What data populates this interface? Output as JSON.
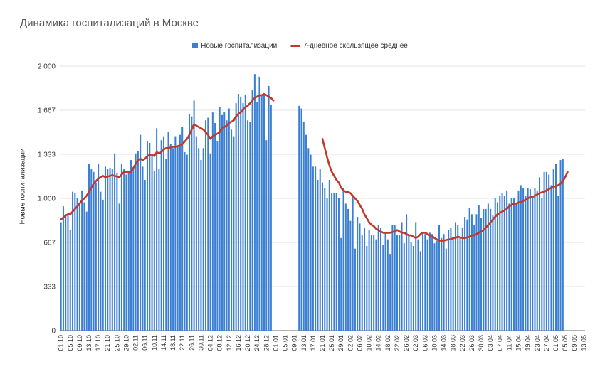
{
  "chart_data": {
    "type": "bar",
    "title": "Динамика госпитализаций в Москве",
    "ylabel": "Новые госпитализации",
    "xlabel": "",
    "ylim": [
      0,
      2000
    ],
    "yticks": [
      "0",
      "333",
      "667",
      "1 000",
      "1 333",
      "1 667",
      "2 000"
    ],
    "ytick_values": [
      0,
      333,
      667,
      1000,
      1333,
      1667,
      2000
    ],
    "grid": true,
    "legend_position": "top",
    "colors": {
      "bars": "#3b7fd4",
      "line": "#c0392b",
      "grid": "#e6e6e6"
    },
    "series": [
      {
        "name": "Новые госпитализации",
        "kind": "bar"
      },
      {
        "name": "7-дневное скользящее среднее",
        "kind": "line"
      }
    ],
    "start_date": "2020-10-01",
    "xtick_labels": [
      "01.10",
      "05.10",
      "09.10",
      "13.10",
      "17.10",
      "21.10",
      "25.10",
      "29.10",
      "02.11",
      "06.11",
      "10.11",
      "14.11",
      "18.11",
      "22.11",
      "26.11",
      "30.11",
      "04.12",
      "08.12",
      "12.12",
      "16.12",
      "20.12",
      "24.12",
      "28.12",
      "01.01",
      "05.01",
      "09.01",
      "13.01",
      "17.01",
      "21.01",
      "25.01",
      "29.01",
      "02.02",
      "06.02",
      "10.02",
      "14.02",
      "18.02",
      "22.02",
      "26.02",
      "02.03",
      "06.03",
      "10.03",
      "14.03",
      "18.03",
      "22.03",
      "26.03",
      "30.03",
      "03.04",
      "07.04",
      "11.04",
      "15.04",
      "19.04",
      "23.04",
      "27.04",
      "01.05",
      "05.05",
      "09.05",
      "13.05"
    ],
    "segments": [
      {
        "start_index": 0,
        "values": [
          820,
          940,
          880,
          870,
          760,
          1050,
          1040,
          1000,
          960,
          1060,
          970,
          900,
          1260,
          1220,
          1200,
          1120,
          1260,
          1050,
          990,
          1240,
          1220,
          1230,
          1220,
          1340,
          1190,
          960,
          1260,
          1220,
          1180,
          1210,
          1290,
          1230,
          1340,
          1360,
          1480,
          1240,
          1140,
          1430,
          1420,
          1320,
          1210,
          1530,
          1220,
          1440,
          1470,
          1300,
          1500,
          1410,
          1380,
          1470,
          1400,
          1480,
          1540,
          1350,
          1330,
          1640,
          1620,
          1740,
          1470,
          1380,
          1290,
          1380,
          1590,
          1610,
          1340,
          1650,
          1570,
          1430,
          1690,
          1630,
          1650,
          1590,
          1680,
          1520,
          1470,
          1720,
          1790,
          1770,
          1720,
          1780,
          1590,
          1580,
          1820,
          1940,
          1730,
          1920,
          1780,
          1790,
          1440,
          1850,
          1710
        ],
        "moving_average": [
          840,
          855,
          870,
          880,
          880,
          900,
          920,
          940,
          960,
          985,
          1000,
          1020,
          1050,
          1080,
          1110,
          1130,
          1150,
          1160,
          1170,
          1160,
          1165,
          1170,
          1175,
          1170,
          1165,
          1160,
          1180,
          1200,
          1200,
          1200,
          1200,
          1230,
          1260,
          1290,
          1300,
          1290,
          1300,
          1320,
          1330,
          1330,
          1320,
          1350,
          1340,
          1350,
          1370,
          1380,
          1380,
          1385,
          1390,
          1390,
          1395,
          1400,
          1410,
          1430,
          1450,
          1480,
          1520,
          1560,
          1550,
          1540,
          1530,
          1520,
          1500,
          1480,
          1450,
          1470,
          1480,
          1490,
          1500,
          1530,
          1540,
          1550,
          1570,
          1580,
          1590,
          1620,
          1640,
          1650,
          1670,
          1690,
          1700,
          1720,
          1740,
          1760,
          1770,
          1780,
          1780,
          1790,
          1780,
          1770,
          1760,
          1740
        ]
      },
      {
        "start_index": 102,
        "values": [
          1700,
          1680,
          1580,
          1480,
          1380,
          1330,
          1240,
          1240,
          1140,
          1220,
          1120,
          1080,
          1000,
          1140,
          1040,
          1040,
          1040,
          1000,
          700,
          1080,
          960,
          920,
          830,
          1020,
          620,
          860,
          810,
          720,
          780,
          640,
          760,
          720,
          720,
          690,
          800,
          780,
          650,
          740,
          690,
          580,
          800,
          800,
          720,
          720,
          820,
          660,
          880,
          720,
          670,
          640,
          820,
          690,
          600,
          730,
          730,
          690,
          740,
          730,
          660,
          680,
          800,
          700,
          730,
          620,
          760,
          780,
          700,
          820,
          800,
          700,
          780,
          860,
          840,
          930,
          880,
          800,
          880,
          950,
          850,
          920,
          920,
          960,
          920,
          870,
          1000,
          970,
          1020,
          1040,
          1020,
          1060,
          960,
          1000,
          1000,
          960,
          1060,
          1100,
          1080,
          1020,
          1080,
          1070,
          1000,
          1080,
          1060,
          1160,
          1000,
          1200,
          1200,
          1180,
          1100,
          1220,
          1260,
          1020,
          1290,
          1300
        ],
        "moving_average": [
          null,
          null,
          null,
          null,
          null,
          null,
          null,
          null,
          null,
          null,
          1450,
          1380,
          1310,
          1250,
          1200,
          1170,
          1140,
          1120,
          1080,
          1060,
          1050,
          1050,
          1040,
          1020,
          1000,
          980,
          950,
          920,
          880,
          850,
          820,
          800,
          790,
          770,
          760,
          750,
          740,
          740,
          740,
          740,
          745,
          750,
          760,
          750,
          740,
          740,
          730,
          720,
          720,
          710,
          700,
          710,
          730,
          740,
          740,
          730,
          720,
          715,
          700,
          690,
          680,
          680,
          680,
          685,
          690,
          690,
          700,
          700,
          710,
          705,
          700,
          700,
          705,
          710,
          720,
          720,
          730,
          740,
          750,
          760,
          780,
          800,
          820,
          840,
          860,
          880,
          890,
          900,
          910,
          920,
          940,
          950,
          960,
          960,
          970,
          970,
          980,
          990,
          1000,
          1010,
          1010,
          1020,
          1030,
          1040,
          1045,
          1050,
          1060,
          1070,
          1080,
          1090,
          1090,
          1100,
          1110,
          1130,
          1160,
          1200
        ]
      }
    ],
    "total_days": 225
  }
}
